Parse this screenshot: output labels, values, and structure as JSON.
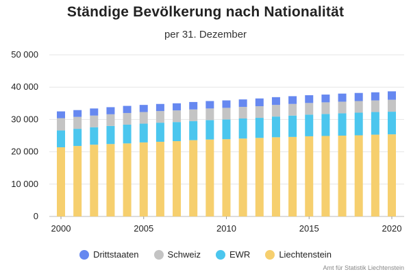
{
  "chart_data": {
    "type": "bar",
    "stacked": true,
    "title": "Ständige Bevölkerung nach Nationalität",
    "subtitle": "per 31. Dezember",
    "xlabel": "",
    "ylabel": "",
    "ylim": [
      0,
      50000
    ],
    "y_ticks": [
      "0",
      "10 000",
      "20 000",
      "30 000",
      "40 000",
      "50 000"
    ],
    "x_ticks": [
      "2000",
      "2005",
      "2010",
      "2015",
      "2020"
    ],
    "grid": true,
    "legend_position": "bottom",
    "categories": [
      2000,
      2001,
      2002,
      2003,
      2004,
      2005,
      2006,
      2007,
      2008,
      2009,
      2010,
      2011,
      2012,
      2013,
      2014,
      2015,
      2016,
      2017,
      2018,
      2019,
      2020
    ],
    "series": [
      {
        "name": "Liechtenstein",
        "color": "#f6cf6e",
        "values": [
          21400,
          21800,
          22200,
          22400,
          22600,
          22900,
          23100,
          23300,
          23600,
          23800,
          23900,
          24100,
          24300,
          24500,
          24600,
          24800,
          24900,
          25000,
          25100,
          25300,
          25400
        ]
      },
      {
        "name": "EWR",
        "color": "#4bc6ee",
        "values": [
          5200,
          5300,
          5400,
          5600,
          5800,
          5800,
          5900,
          5900,
          5900,
          6000,
          6100,
          6200,
          6200,
          6400,
          6600,
          6700,
          6800,
          6900,
          7000,
          7000,
          7000
        ]
      },
      {
        "name": "Schweiz",
        "color": "#c4c4c4",
        "values": [
          3800,
          3700,
          3600,
          3600,
          3600,
          3600,
          3600,
          3600,
          3600,
          3600,
          3600,
          3600,
          3600,
          3600,
          3600,
          3600,
          3600,
          3600,
          3600,
          3600,
          3700
        ]
      },
      {
        "name": "Drittstaaten",
        "color": "#6688f0",
        "values": [
          2100,
          2100,
          2200,
          2200,
          2200,
          2200,
          2200,
          2200,
          2300,
          2300,
          2300,
          2300,
          2400,
          2400,
          2400,
          2400,
          2400,
          2500,
          2500,
          2500,
          2600
        ]
      }
    ],
    "legend_order": [
      "Drittstaaten",
      "Schweiz",
      "EWR",
      "Liechtenstein"
    ]
  },
  "source": "Amt für Statistik Liechtenstein"
}
